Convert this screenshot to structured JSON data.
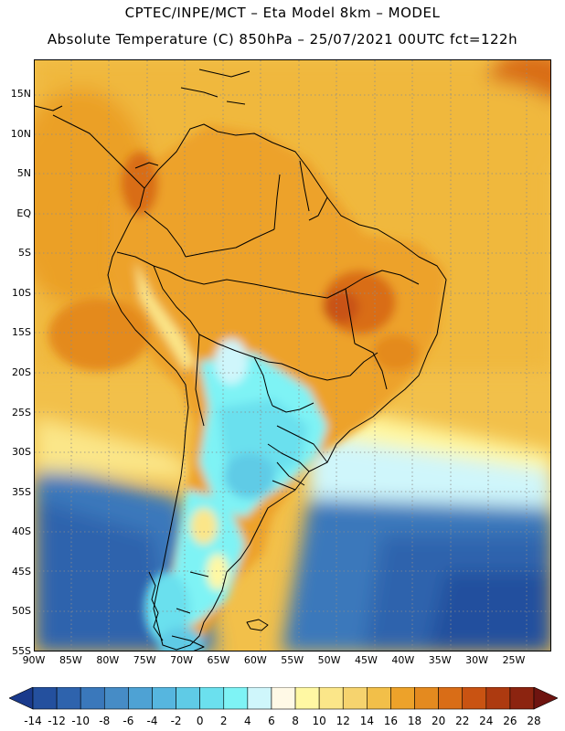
{
  "header": {
    "line1": "CPTEC/INPE/MCT  –  Eta Model 8km  –  MODEL",
    "line2": "Absolute Temperature (C) 850hPa – 25/07/2021 00UTC fct=122h"
  },
  "map": {
    "lat_labels": [
      "15N",
      "10N",
      "5N",
      "EQ",
      "5S",
      "10S",
      "15S",
      "20S",
      "25S",
      "30S",
      "35S",
      "40S",
      "45S",
      "50S",
      "55S"
    ],
    "lon_labels": [
      "90W",
      "85W",
      "80W",
      "75W",
      "70W",
      "65W",
      "60W",
      "55W",
      "50W",
      "45W",
      "40W",
      "35W",
      "30W",
      "25W"
    ],
    "ocean_color": "#f0b83c",
    "land_color": "#eda22a",
    "gridline_style": "dotted gray"
  },
  "colorbar": {
    "labels": [
      "-14",
      "-12",
      "-10",
      "-8",
      "-6",
      "-4",
      "-2",
      "0",
      "2",
      "4",
      "6",
      "8",
      "10",
      "12",
      "14",
      "16",
      "18",
      "20",
      "22",
      "24",
      "26",
      "28"
    ],
    "colors": [
      "#1a3a8c",
      "#24509e",
      "#2e63ad",
      "#3a78bb",
      "#468cc6",
      "#4ea2d4",
      "#56b6df",
      "#5fcbe6",
      "#6be0ee",
      "#7ef3f5",
      "#cff6fb",
      "#fff9e6",
      "#fff8a3",
      "#fbe689",
      "#f6d36e",
      "#f2bf49",
      "#eda22a",
      "#e48a1f",
      "#d96d17",
      "#c95312",
      "#ad3a10",
      "#8c2410",
      "#6e1410"
    ]
  }
}
